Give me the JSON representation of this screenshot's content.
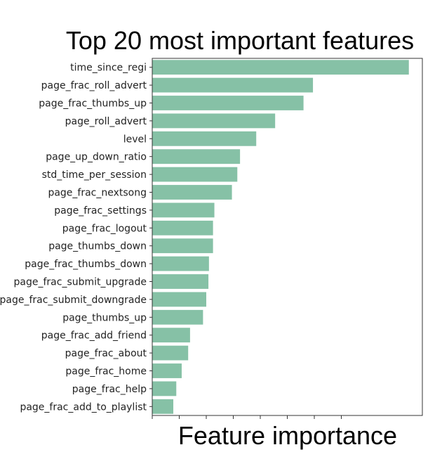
{
  "chart_data": {
    "type": "bar",
    "orientation": "horizontal",
    "title": "Top 20 most important features",
    "xlabel": "Feature importance",
    "ylabel": "",
    "color": "#86c1a6",
    "xlim": [
      0,
      1.0
    ],
    "x_ticks": [
      0,
      0.1,
      0.2,
      0.3,
      0.4,
      0.5,
      0.6,
      0.7
    ],
    "show_x_tick_labels": false,
    "categories": [
      "time_since_regi",
      "page_frac_roll_advert",
      "page_frac_thumbs_up",
      "page_roll_advert",
      "level",
      "page_up_down_ratio",
      "std_time_per_session",
      "page_frac_nextsong",
      "page_frac_settings",
      "page_frac_logout",
      "page_thumbs_down",
      "page_frac_thumbs_down",
      "page_frac_submit_upgrade",
      "page_frac_submit_downgrade",
      "page_thumbs_up",
      "page_frac_add_friend",
      "page_frac_about",
      "page_frac_home",
      "page_frac_help",
      "page_frac_add_to_playlist"
    ],
    "values": [
      0.95,
      0.595,
      0.56,
      0.455,
      0.385,
      0.325,
      0.315,
      0.295,
      0.23,
      0.225,
      0.225,
      0.21,
      0.208,
      0.2,
      0.188,
      0.14,
      0.133,
      0.109,
      0.089,
      0.078
    ],
    "grid": false,
    "legend": "none"
  }
}
